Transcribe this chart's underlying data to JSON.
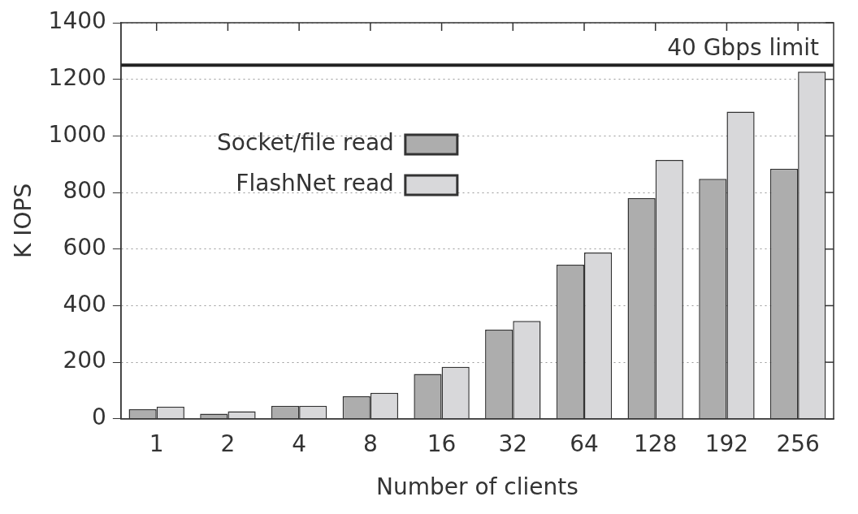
{
  "chart_data": {
    "type": "bar",
    "xlabel": "Number of clients",
    "ylabel": "K IOPS",
    "categories": [
      "1",
      "2",
      "4",
      "8",
      "16",
      "32",
      "64",
      "128",
      "192",
      "256"
    ],
    "series": [
      {
        "name": "Socket/file read",
        "color": "#adadad",
        "values": [
          34,
          18,
          46,
          80,
          159,
          315,
          545,
          780,
          848,
          884
        ]
      },
      {
        "name": "FlashNet read",
        "color": "#d8d8da",
        "values": [
          43,
          27,
          46,
          92,
          184,
          346,
          588,
          915,
          1086,
          1227
        ]
      }
    ],
    "ylim": [
      0,
      1400
    ],
    "yticks": [
      0,
      200,
      400,
      600,
      800,
      1000,
      1200,
      1400
    ],
    "grid": "y",
    "legend": "top left",
    "ref_lines": [
      {
        "axis": "y",
        "value": 1250,
        "label": "40 Gbps limit",
        "color": "#222222",
        "line_style": "solid"
      }
    ]
  }
}
